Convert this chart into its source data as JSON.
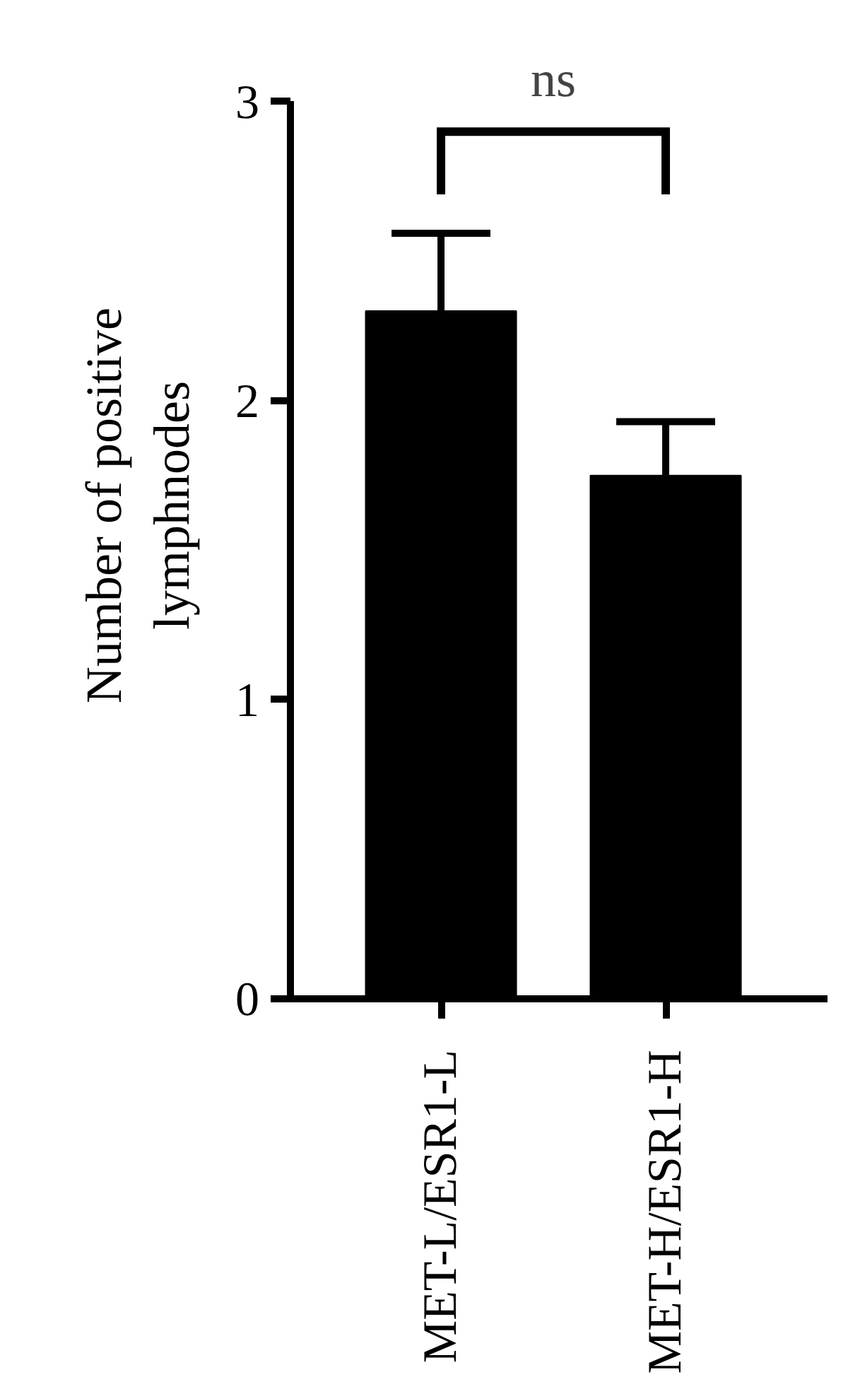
{
  "chart_data": {
    "type": "bar",
    "ylabel": "Number of positive lymphnodes",
    "categories": [
      "MET-L/ESR1-L",
      "MET-H/ESR1-H"
    ],
    "values": [
      2.3,
      1.75
    ],
    "errors": [
      [
        2.3,
        2.56
      ],
      [
        1.75,
        1.93
      ]
    ],
    "color": "#000000",
    "ylim": [
      0,
      3
    ],
    "yticks": [
      0,
      1,
      2,
      3
    ],
    "annotations": [
      "ns"
    ],
    "grid": false
  }
}
